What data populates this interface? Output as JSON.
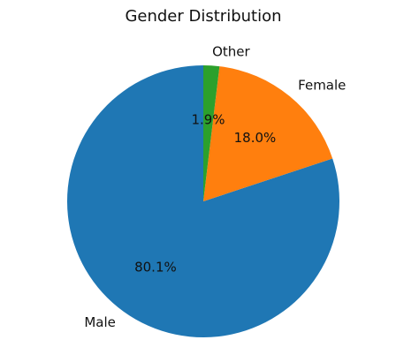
{
  "chart_data": {
    "type": "pie",
    "title": "Gender Distribution",
    "categories": [
      "Male",
      "Female",
      "Other"
    ],
    "values": [
      80.1,
      18.0,
      1.9
    ],
    "value_labels": [
      "80.1%",
      "18.0%",
      "1.9%"
    ],
    "colors": [
      "#1f77b4",
      "#ff7f0e",
      "#2ca02c"
    ]
  }
}
